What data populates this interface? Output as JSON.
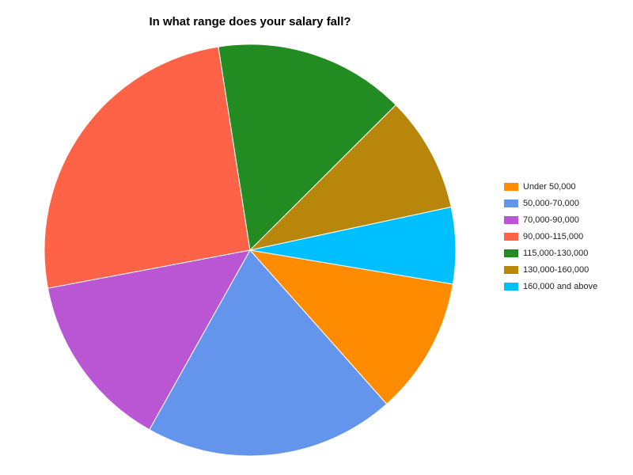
{
  "chart_data": {
    "type": "pie",
    "title": "In what range does your salary fall?",
    "legend_position": "right",
    "slices": [
      {
        "label": "Under 50,000",
        "value": 10.8,
        "color": "#FF8C00"
      },
      {
        "label": "50,000-70,000",
        "value": 19.7,
        "color": "#6495ED"
      },
      {
        "label": "70,000-90,000",
        "value": 13.9,
        "color": "#BA55D3"
      },
      {
        "label": "90,000-115,000",
        "value": 25.5,
        "color": "#FF6347"
      },
      {
        "label": "115,000-130,000",
        "value": 15.0,
        "color": "#228B22"
      },
      {
        "label": "130,000-160,000",
        "value": 9.1,
        "color": "#B8860B"
      },
      {
        "label": "160,000 and above",
        "value": 6.0,
        "color": "#00BFFF"
      }
    ]
  }
}
